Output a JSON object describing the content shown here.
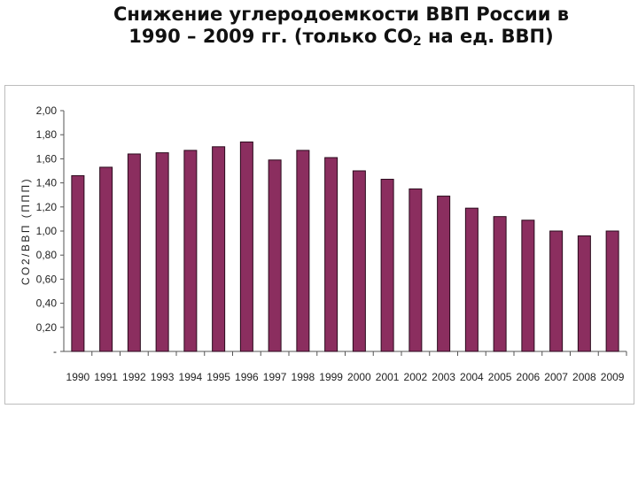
{
  "title": {
    "line1": "Снижение углеродоемкости ВВП России в",
    "line2_pre": "1990 – 2009 гг. (только CO",
    "line2_sub": "2",
    "line2_post": " на ед. ВВП)"
  },
  "chart_data": {
    "type": "bar",
    "categories": [
      "1990",
      "1991",
      "1992",
      "1993",
      "1994",
      "1995",
      "1996",
      "1997",
      "1998",
      "1999",
      "2000",
      "2001",
      "2002",
      "2003",
      "2004",
      "2005",
      "2006",
      "2007",
      "2008",
      "2009"
    ],
    "values": [
      1.46,
      1.53,
      1.64,
      1.65,
      1.67,
      1.7,
      1.74,
      1.59,
      1.67,
      1.61,
      1.5,
      1.43,
      1.35,
      1.29,
      1.19,
      1.12,
      1.09,
      1.0,
      0.96,
      1.0
    ],
    "ylabel": "CO2/ВВП (ППП)",
    "ylim": [
      0,
      2.0
    ],
    "yticks": [
      "-",
      "0,20",
      "0,40",
      "0,60",
      "0,80",
      "1,00",
      "1,20",
      "1,40",
      "1,60",
      "1,80",
      "2,00"
    ],
    "bar_color": "#8b2e5f",
    "grid": false,
    "legend": "none"
  }
}
